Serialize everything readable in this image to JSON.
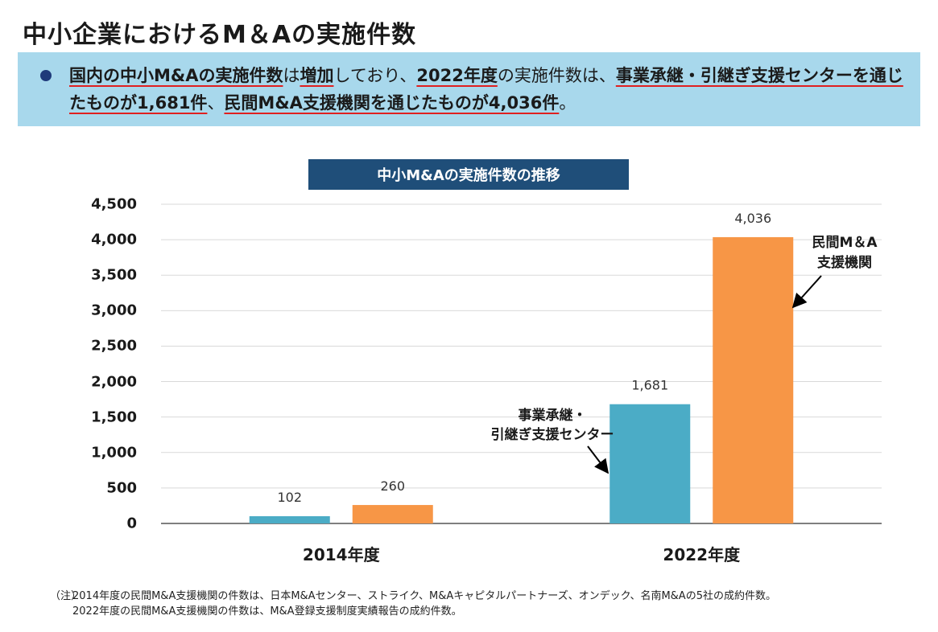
{
  "page": {
    "title": "中小企業におけるM＆Aの実施件数"
  },
  "summary": {
    "p1": "国内の中小M&Aの実施件数",
    "p2": "は",
    "p3": "増加",
    "p4": "しており、",
    "p5": "2022年度",
    "p6": "の実施件数は、",
    "p7": "事業承継・引継ぎ支援センターを通じたものが1,681件",
    "p8": "、",
    "p9": "民間M&A支援機関を通じたものが4,036件",
    "p10": "。"
  },
  "colors": {
    "series_center": "#4bacc6",
    "series_private": "#f79646",
    "title_bg": "#1f4e79",
    "summary_bg": "#a8d8ec"
  },
  "chart_data": {
    "type": "bar",
    "title": "中小M&Aの実施件数の推移",
    "categories": [
      "2014年度",
      "2022年度"
    ],
    "series": [
      {
        "name": "事業承継・引継ぎ支援センター",
        "values": [
          102,
          1681
        ]
      },
      {
        "name": "民間M＆A支援機関",
        "values": [
          260,
          4036
        ]
      }
    ],
    "data_labels": [
      [
        "102",
        "1,681"
      ],
      [
        "260",
        "4,036"
      ]
    ],
    "yticks": [
      "0",
      "500",
      "1,000",
      "1,500",
      "2,000",
      "2,500",
      "3,000",
      "3,500",
      "4,000",
      "4,500"
    ],
    "ylim": [
      0,
      4500
    ],
    "grid": true,
    "annotations": {
      "center_line1": "事業承継・",
      "center_line2": "引継ぎ支援センター",
      "private_line1": "民間M＆A",
      "private_line2": "支援機関"
    }
  },
  "footnote": {
    "prefix": "（注）",
    "line1": "2014年度の民間M&A支援機関の件数は、日本M&Aセンター、ストライク、M&Aキャピタルパートナーズ、オンデック、名南M&Aの5社の成約件数。",
    "line2": "2022年度の民間M&A支援機関の件数は、M&A登録支援制度実績報告の成約件数。"
  }
}
